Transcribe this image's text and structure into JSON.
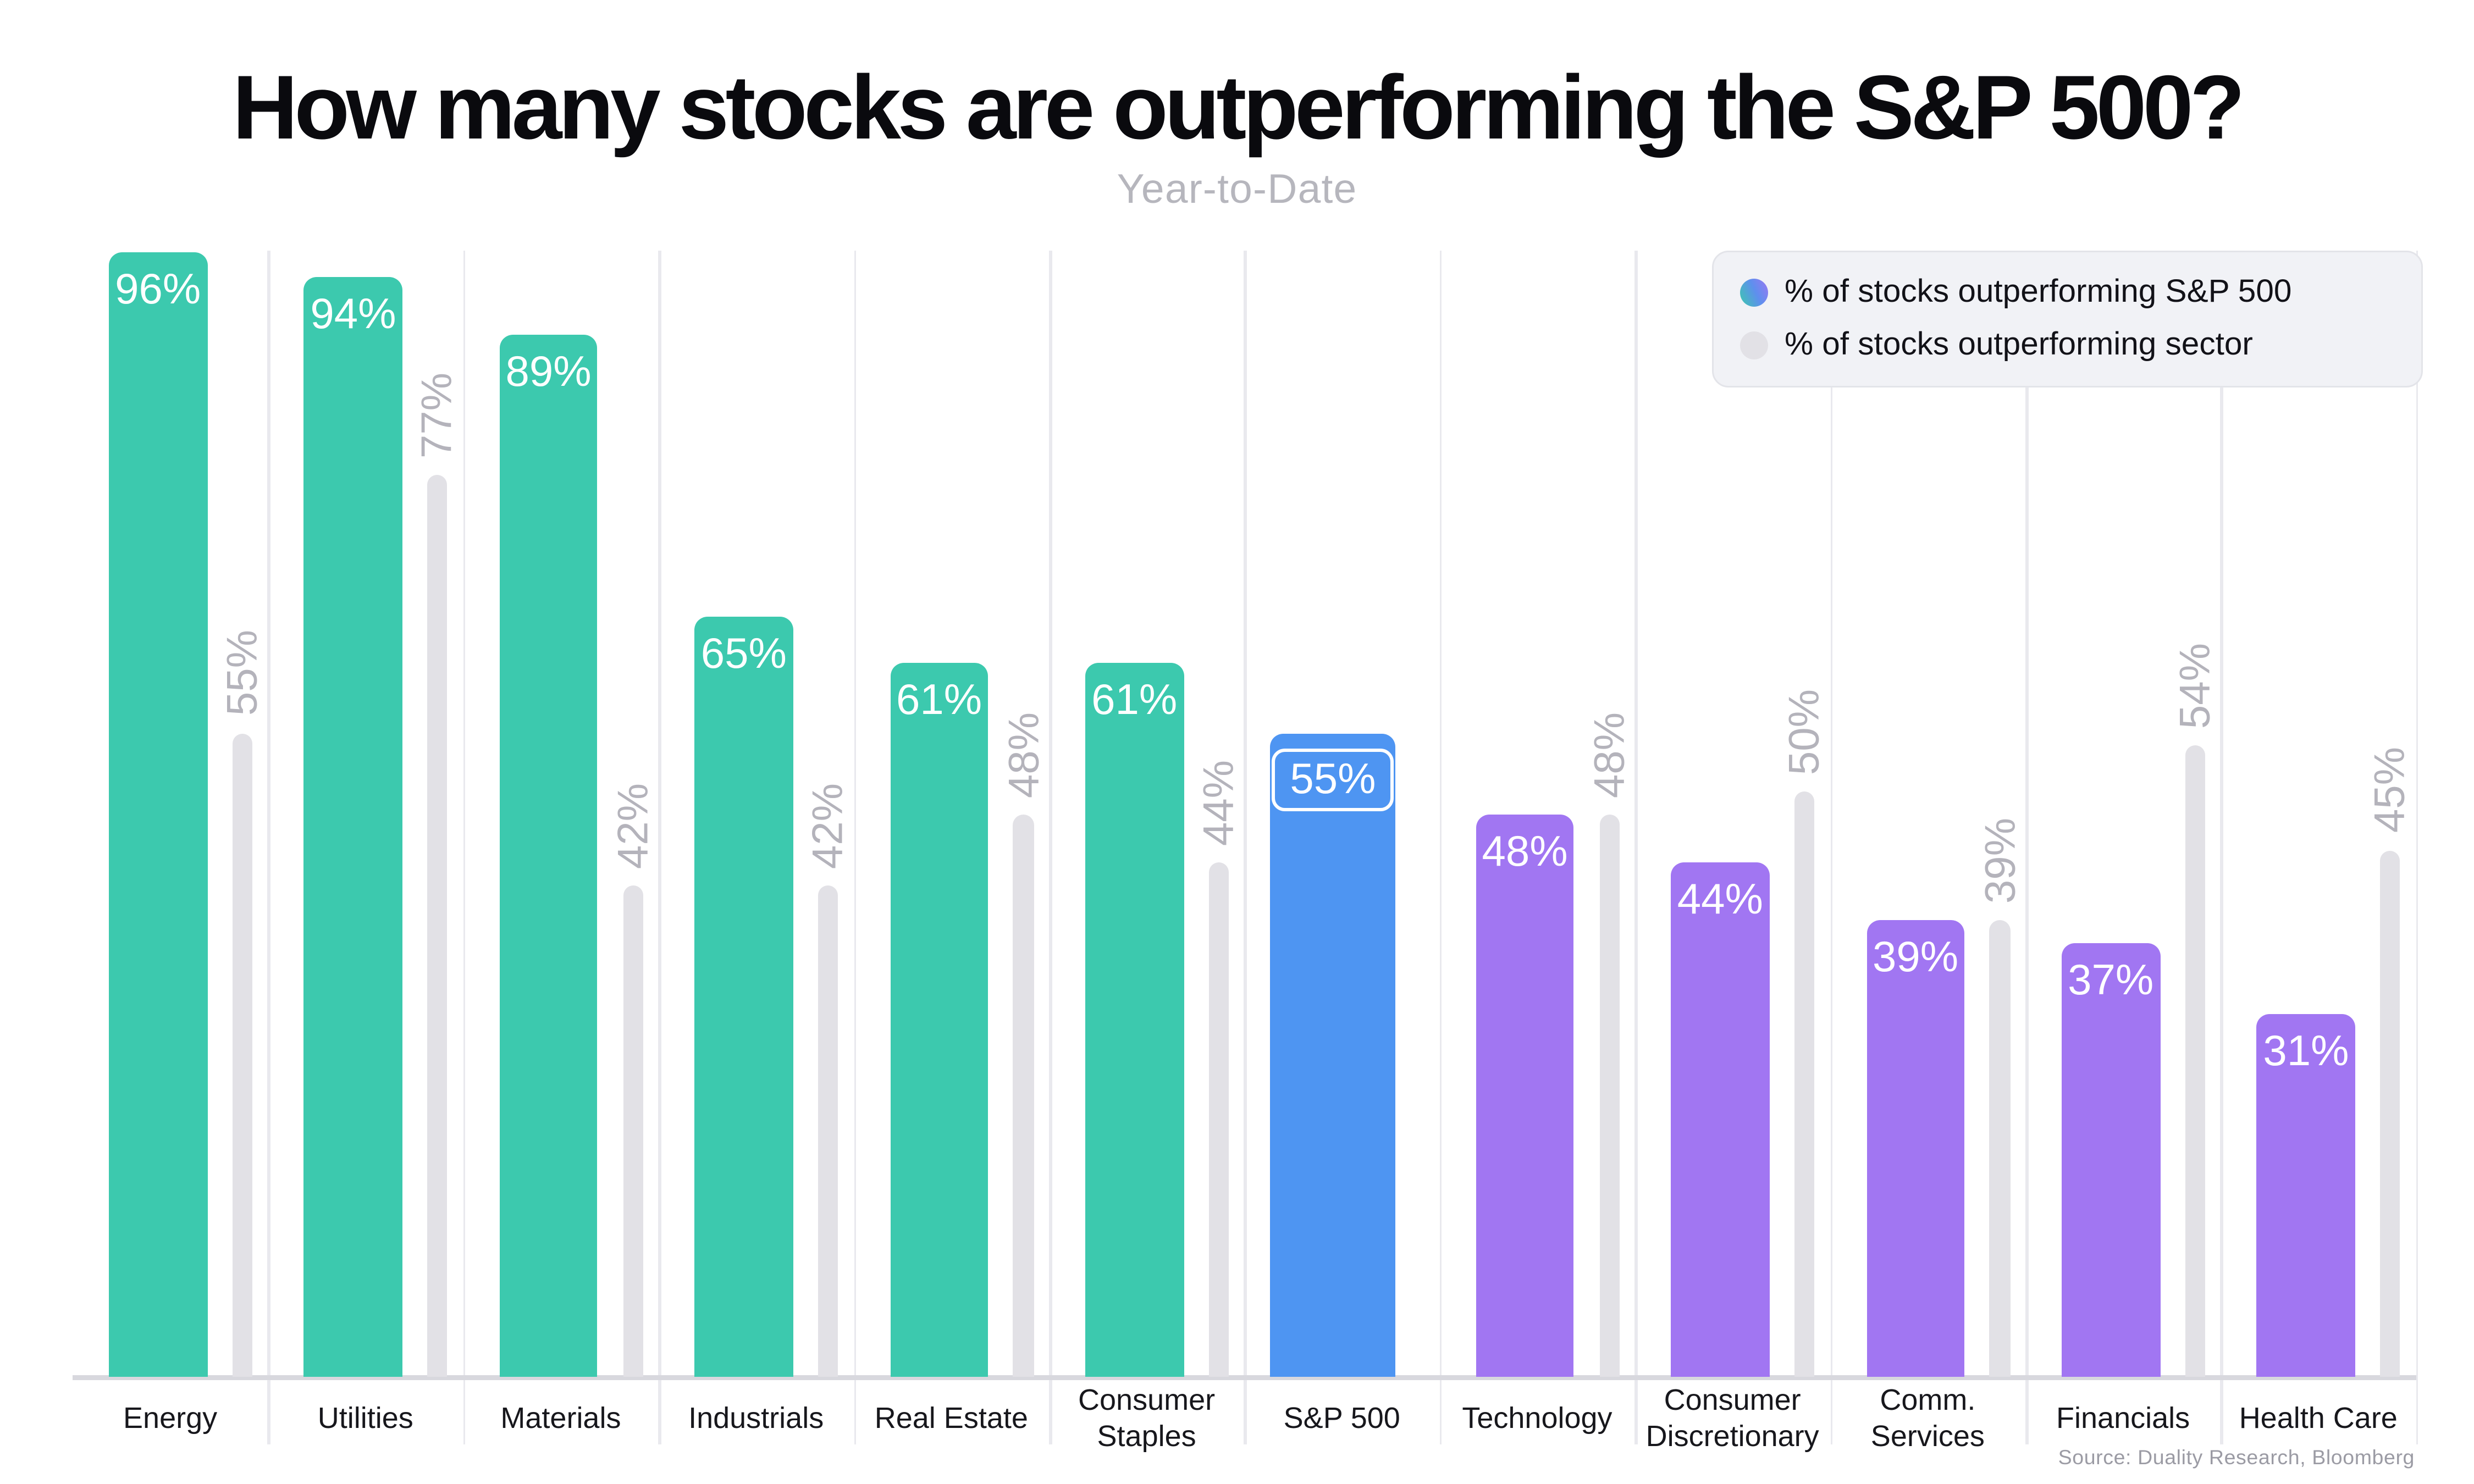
{
  "chart_data": {
    "type": "bar",
    "title": "How many stocks are outperforming the S&P 500?",
    "subtitle": "Year-to-Date",
    "source": "Source: Duality Research, Bloomberg",
    "value_suffix": "%",
    "categories": [
      "Energy",
      "Utilities",
      "Materials",
      "Industrials",
      "Real Estate",
      "Consumer Staples",
      "S&P 500",
      "Technology",
      "Consumer Discretionary",
      "Comm. Services",
      "Financials",
      "Health Care"
    ],
    "series": [
      {
        "name": "% of stocks outperforming S&P 500",
        "values": [
          96,
          94,
          89,
          65,
          61,
          61,
          55,
          48,
          44,
          39,
          37,
          31
        ]
      },
      {
        "name": "% of stocks outperforming sector",
        "values": [
          55,
          77,
          42,
          42,
          48,
          44,
          null,
          48,
          50,
          39,
          54,
          45
        ]
      }
    ],
    "benchmark_index": 6,
    "ylim": [
      0,
      100
    ],
    "grid": "vertical-category-separators",
    "legend_position": "top-right"
  },
  "colors": {
    "outperforming_above_benchmark": "#3CC9AE",
    "benchmark_blue": "#4E95F2",
    "outperforming_below_benchmark": "#A176F2",
    "sector_gray_bar": "#E2E1E6",
    "legend_gradient_start": "#3CC9AE",
    "legend_gradient_mid": "#5F8FEE",
    "legend_gradient_end": "#9A78F2",
    "title_text": "#0A0A0E",
    "muted_text": "#B6B6BD"
  }
}
